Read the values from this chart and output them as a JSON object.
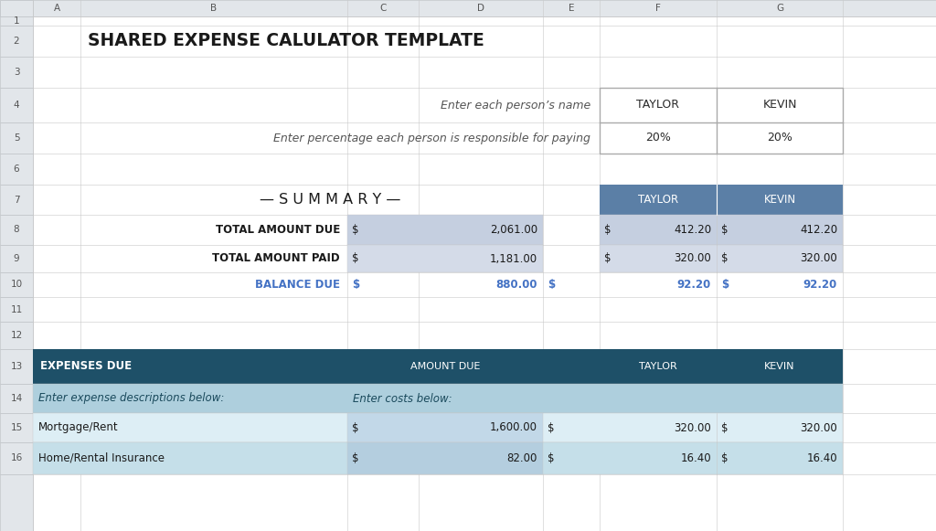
{
  "title": "SHARED EXPENSE CALULATOR TEMPLATE",
  "title_color": "#1a1a1a",
  "bg_color": "#ffffff",
  "col_letters": [
    "A",
    "B",
    "C",
    "D",
    "E",
    "F",
    "G"
  ],
  "row_numbers": [
    "1",
    "2",
    "3",
    "4",
    "5",
    "6",
    "7",
    "8",
    "9",
    "10",
    "11",
    "12",
    "13",
    "14",
    "15",
    "16"
  ],
  "summary_header_bg": "#5b7fa6",
  "summary_row8_bg": "#c5cfe0",
  "summary_row9_bg": "#d4dbe8",
  "balance_due_color": "#4472c4",
  "expenses_header_bg": "#1e5068",
  "expenses_row14_bg": "#aecfdd",
  "expenses_row15_bg": "#ddeef5",
  "expenses_row16_bg": "#c5dfe9",
  "grid_color": "#c8c8c8",
  "row4_label": "Enter each person’s name",
  "row5_label": "Enter percentage each person is responsible for paying",
  "summary_label": "— S U M M A R Y —",
  "person1_name": "TAYLOR",
  "person2_name": "KEVIN",
  "person1_pct": "20%",
  "person2_pct": "20%",
  "row8_label": "TOTAL AMOUNT DUE",
  "row9_label": "TOTAL AMOUNT PAID",
  "row10_label": "BALANCE DUE",
  "row8_amount": "2,061.00",
  "row9_amount": "1,181.00",
  "row10_amount": "880.00",
  "row8_t1": "412.20",
  "row8_t2": "412.20",
  "row9_t1": "320.00",
  "row9_t2": "320.00",
  "row10_t1": "92.20",
  "row10_t2": "92.20",
  "expenses_col1": "EXPENSES DUE",
  "expenses_col2": "AMOUNT DUE",
  "expenses_col3": "TAYLOR",
  "expenses_col4": "KEVIN",
  "row14_col1": "Enter expense descriptions below:",
  "row14_col2": "Enter costs below:",
  "row15_col1": "Mortgage/Rent",
  "row15_amount": "1,600.00",
  "row15_t1": "320.00",
  "row15_t2": "320.00",
  "row16_col1": "Home/Rental Insurance",
  "row16_amount": "82.00",
  "row16_t1": "16.40",
  "row16_t2": "16.40"
}
